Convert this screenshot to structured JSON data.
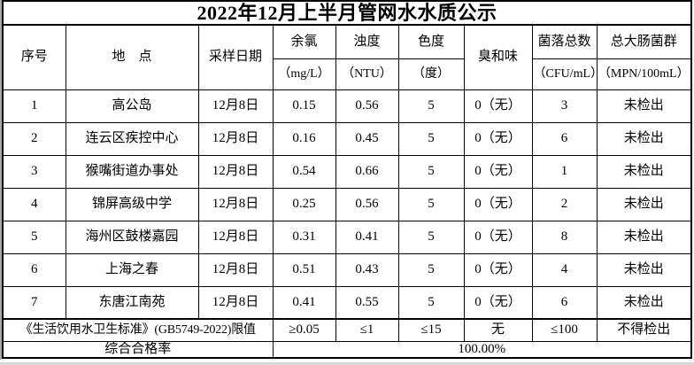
{
  "page": {
    "title": "2022年12月上半月管网水水质公示"
  },
  "table": {
    "header": {
      "index": "序号",
      "location": "地　点",
      "date": "采样日期",
      "chlorine": "余氯",
      "chlorine_unit": "（mg/L）",
      "turbidity": "浊度",
      "turbidity_unit": "（NTU）",
      "color": "色度",
      "color_unit": "（度）",
      "odor": "臭和味",
      "colony": "菌落总数",
      "colony_unit": "（CFU/mL）",
      "coliform": "总大肠菌群",
      "coliform_unit": "（MPN/100mL）"
    },
    "rows": [
      {
        "index": "1",
        "location": "高公岛",
        "date": "12月8日",
        "chlorine": "0.15",
        "turbidity": "0.56",
        "color": "5",
        "odor": "0（无）",
        "colony": "3",
        "coliform": "未检出"
      },
      {
        "index": "2",
        "location": "连云区疾控中心",
        "date": "12月8日",
        "chlorine": "0.16",
        "turbidity": "0.45",
        "color": "5",
        "odor": "0（无）",
        "colony": "6",
        "coliform": "未检出"
      },
      {
        "index": "3",
        "location": "猴嘴街道办事处",
        "date": "12月8日",
        "chlorine": "0.54",
        "turbidity": "0.66",
        "color": "5",
        "odor": "0（无）",
        "colony": "1",
        "coliform": "未检出"
      },
      {
        "index": "4",
        "location": "锦屏高级中学",
        "date": "12月8日",
        "chlorine": "0.25",
        "turbidity": "0.56",
        "color": "5",
        "odor": "0（无）",
        "colony": "2",
        "coliform": "未检出"
      },
      {
        "index": "5",
        "location": "海州区鼓楼嘉园",
        "date": "12月8日",
        "chlorine": "0.31",
        "turbidity": "0.41",
        "color": "5",
        "odor": "0（无）",
        "colony": "8",
        "coliform": "未检出"
      },
      {
        "index": "6",
        "location": "上海之春",
        "date": "12月8日",
        "chlorine": "0.51",
        "turbidity": "0.43",
        "color": "5",
        "odor": "0（无）",
        "colony": "4",
        "coliform": "未检出"
      },
      {
        "index": "7",
        "location": "东唐江南苑",
        "date": "12月8日",
        "chlorine": "0.41",
        "turbidity": "0.55",
        "color": "5",
        "odor": "0（无）",
        "colony": "6",
        "coliform": "未检出"
      }
    ],
    "limits": {
      "label": "《生活饮用水卫生标准》(GB5749-2022)限值",
      "chlorine": "≥0.05",
      "turbidity": "≤1",
      "color": "≤15",
      "odor": "无",
      "colony": "≤100",
      "coliform": "不得检出"
    },
    "summary": {
      "label": "综合合格率",
      "value": "100.00%"
    }
  }
}
